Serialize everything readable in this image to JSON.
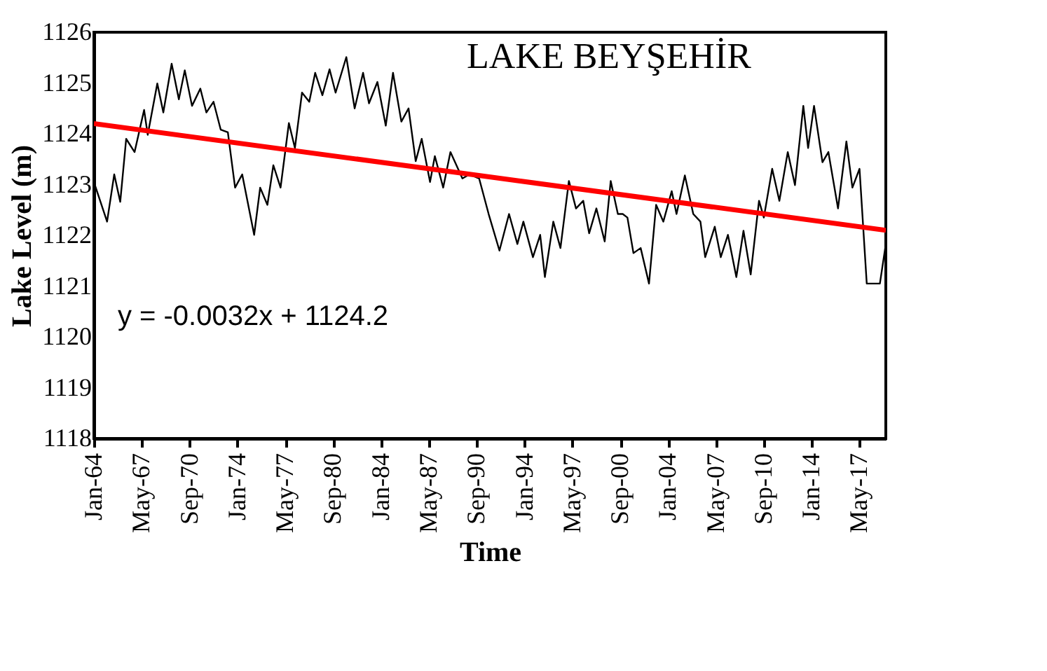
{
  "chart_data": {
    "type": "line",
    "xlabel": "Time",
    "ylabel": "Lake Level (m)",
    "annotations": [
      "LAKE BEYŞEHİR",
      "y = -0.0032x + 1124.2"
    ],
    "xlim": [
      "1964-01",
      "2019-03"
    ],
    "ylim": [
      1118,
      1126
    ],
    "yticks": [
      1118,
      1119,
      1120,
      1121,
      1122,
      1123,
      1124,
      1125,
      1126
    ],
    "xticks": [
      {
        "value": "1964-01",
        "label": "Jan-64"
      },
      {
        "value": "1967-05",
        "label": "May-67"
      },
      {
        "value": "1970-09",
        "label": "Sep-70"
      },
      {
        "value": "1974-01",
        "label": "Jan-74"
      },
      {
        "value": "1977-05",
        "label": "May-77"
      },
      {
        "value": "1980-09",
        "label": "Sep-80"
      },
      {
        "value": "1984-01",
        "label": "Jan-84"
      },
      {
        "value": "1987-05",
        "label": "May-87"
      },
      {
        "value": "1990-09",
        "label": "Sep-90"
      },
      {
        "value": "1994-01",
        "label": "Jan-94"
      },
      {
        "value": "1997-05",
        "label": "May-97"
      },
      {
        "value": "2000-09",
        "label": "Sep-00"
      },
      {
        "value": "2004-01",
        "label": "Jan-04"
      },
      {
        "value": "2007-05",
        "label": "May-07"
      },
      {
        "value": "2010-09",
        "label": "Sep-10"
      },
      {
        "value": "2014-01",
        "label": "Jan-14"
      },
      {
        "value": "2017-05",
        "label": "May-17"
      }
    ],
    "grid": false,
    "marker": "none",
    "line_style": "solid",
    "series": [
      {
        "color": "#000000",
        "x": [
          "1964-01",
          "1964-12",
          "1965-06",
          "1965-11",
          "1966-04",
          "1966-11",
          "1967-07",
          "1967-10",
          "1968-06",
          "1968-11",
          "1969-06",
          "1969-12",
          "1970-05",
          "1970-11",
          "1971-06",
          "1971-11",
          "1972-05",
          "1972-11",
          "1973-05",
          "1973-11",
          "1974-05",
          "1975-03",
          "1975-08",
          "1976-02",
          "1976-07",
          "1977-01",
          "1977-08",
          "1978-01",
          "1978-07",
          "1979-01",
          "1979-06",
          "1979-12",
          "1980-06",
          "1980-11",
          "1981-08",
          "1982-03",
          "1982-10",
          "1983-03",
          "1983-10",
          "1984-05",
          "1984-11",
          "1985-06",
          "1985-12",
          "1986-06",
          "1986-11",
          "1987-06",
          "1987-10",
          "1988-05",
          "1988-11",
          "1989-09",
          "1990-03",
          "1990-11",
          "1991-07",
          "1992-04",
          "1992-12",
          "1993-07",
          "1993-12",
          "1994-08",
          "1995-02",
          "1995-06",
          "1996-01",
          "1996-07",
          "1997-02",
          "1997-08",
          "1998-02",
          "1998-07",
          "1999-01",
          "1999-08",
          "2000-01",
          "2000-07",
          "2000-11",
          "2001-03",
          "2001-08",
          "2002-02",
          "2002-09",
          "2003-03",
          "2003-09",
          "2004-04",
          "2004-08",
          "2005-03",
          "2005-10",
          "2006-04",
          "2006-08",
          "2007-04",
          "2007-09",
          "2008-03",
          "2008-10",
          "2009-04",
          "2009-10",
          "2010-05",
          "2010-09",
          "2011-04",
          "2011-10",
          "2012-05",
          "2012-11",
          "2013-06",
          "2013-10",
          "2014-03",
          "2014-10",
          "2015-03",
          "2015-11",
          "2016-06",
          "2016-11",
          "2017-05",
          "2017-11",
          "2018-10",
          "2019-03"
        ],
        "values": [
          1123.05,
          1122.27,
          1123.2,
          1122.66,
          1123.9,
          1123.64,
          1124.47,
          1123.98,
          1124.99,
          1124.42,
          1125.38,
          1124.68,
          1125.25,
          1124.55,
          1124.89,
          1124.42,
          1124.63,
          1124.08,
          1124.03,
          1122.94,
          1123.2,
          1122.01,
          1122.94,
          1122.6,
          1123.38,
          1122.94,
          1124.21,
          1123.72,
          1124.81,
          1124.63,
          1125.2,
          1124.76,
          1125.27,
          1124.81,
          1125.51,
          1124.5,
          1125.2,
          1124.6,
          1125.02,
          1124.16,
          1125.2,
          1124.24,
          1124.5,
          1123.46,
          1123.9,
          1123.05,
          1123.56,
          1122.94,
          1123.64,
          1123.12,
          1123.2,
          1123.12,
          1122.42,
          1121.7,
          1122.42,
          1121.83,
          1122.27,
          1121.57,
          1122.01,
          1121.18,
          1122.27,
          1121.75,
          1123.07,
          1122.53,
          1122.68,
          1122.04,
          1122.53,
          1121.88,
          1123.07,
          1122.42,
          1122.42,
          1122.35,
          1121.65,
          1121.75,
          1121.05,
          1122.6,
          1122.27,
          1122.87,
          1122.42,
          1123.18,
          1122.42,
          1122.27,
          1121.57,
          1122.17,
          1121.57,
          1122.01,
          1121.18,
          1122.09,
          1121.23,
          1122.68,
          1122.35,
          1123.31,
          1122.68,
          1123.64,
          1122.99,
          1124.55,
          1123.72,
          1124.55,
          1123.44,
          1123.64,
          1122.53,
          1123.85,
          1122.94,
          1123.31,
          1121.05,
          1121.05,
          1121.83
        ]
      },
      {
        "type": "line",
        "color": "#ff0000",
        "x": [
          "1964-01",
          "2019-03"
        ],
        "values": [
          1124.2,
          1122.1
        ]
      }
    ]
  }
}
